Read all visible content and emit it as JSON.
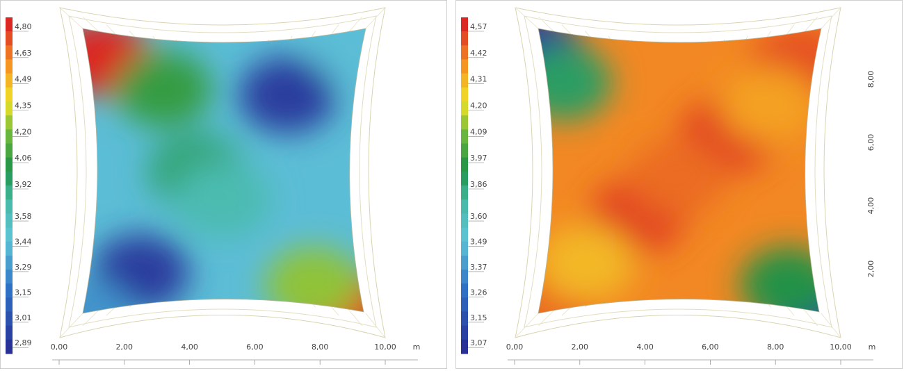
{
  "chart_data": [
    {
      "type": "heatmap",
      "title": "",
      "x_axis": {
        "ticks": [
          "0,00",
          "2,00",
          "4,00",
          "6,00",
          "8,00",
          "10,00"
        ],
        "unit": "m",
        "range": [
          0,
          10
        ]
      },
      "y_axis": {
        "ticks": [],
        "range": [
          0,
          10
        ]
      },
      "colorbar": {
        "labels": [
          "4,80",
          "4,63",
          "4,49",
          "4,35",
          "4,20",
          "4,06",
          "3,92",
          "3,58",
          "3,44",
          "3,29",
          "3,15",
          "3,01",
          "2,89"
        ],
        "range": [
          2.89,
          4.8
        ]
      },
      "hotspots": [
        {
          "x": 1.3,
          "y": 9.0,
          "value": 4.8
        },
        {
          "x": 8.8,
          "y": 1.0,
          "value": 4.75
        },
        {
          "x": 7.8,
          "y": 1.8,
          "value": 4.2
        },
        {
          "x": 3.2,
          "y": 8.0,
          "value": 4.0
        },
        {
          "x": 4.2,
          "y": 5.4,
          "value": 3.85
        },
        {
          "x": 5.0,
          "y": 4.5,
          "value": 3.7
        },
        {
          "x": 2.5,
          "y": 2.2,
          "value": 2.95
        },
        {
          "x": 7.0,
          "y": 7.8,
          "value": 2.95
        },
        {
          "x": 0.8,
          "y": 0.8,
          "value": 3.35
        },
        {
          "x": 9.2,
          "y": 9.3,
          "value": 3.5
        }
      ]
    },
    {
      "type": "heatmap",
      "title": "",
      "x_axis": {
        "ticks": [
          "0,00",
          "2,00",
          "4,00",
          "6,00",
          "8,00",
          "10,00"
        ],
        "unit": "m",
        "range": [
          0,
          10
        ]
      },
      "y_axis": {
        "ticks": [
          "2,00",
          "4,00",
          "6,00",
          "8,00"
        ],
        "range": [
          0,
          10
        ]
      },
      "colorbar": {
        "labels": [
          "4,57",
          "4,42",
          "4,31",
          "4,20",
          "4,09",
          "3,97",
          "3,86",
          "3,60",
          "3,49",
          "3,37",
          "3,26",
          "3,15",
          "3,07"
        ],
        "range": [
          3.07,
          4.57
        ]
      },
      "hotspots": [
        {
          "x": 0.6,
          "y": 9.2,
          "value": 3.1
        },
        {
          "x": 9.3,
          "y": 0.7,
          "value": 3.1
        },
        {
          "x": 1.5,
          "y": 8.2,
          "value": 3.85
        },
        {
          "x": 8.4,
          "y": 1.8,
          "value": 3.9
        },
        {
          "x": 3.8,
          "y": 4.0,
          "value": 4.52
        },
        {
          "x": 6.5,
          "y": 6.5,
          "value": 4.52
        },
        {
          "x": 5.0,
          "y": 5.2,
          "value": 4.45
        },
        {
          "x": 8.7,
          "y": 8.8,
          "value": 4.5
        },
        {
          "x": 1.0,
          "y": 1.0,
          "value": 4.45
        },
        {
          "x": 2.2,
          "y": 2.5,
          "value": 4.3
        },
        {
          "x": 7.8,
          "y": 7.5,
          "value": 4.35
        }
      ]
    }
  ]
}
